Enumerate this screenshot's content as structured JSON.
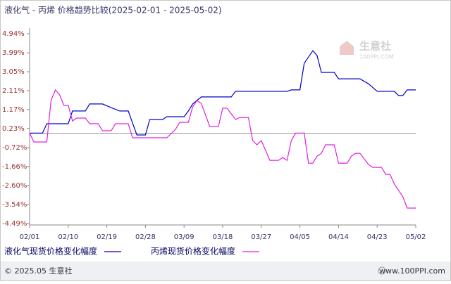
{
  "chart_data": {
    "type": "line",
    "title": "液化气 - 丙烯 价格趋势比较(2025-02-01 - 2025-05-02)",
    "xlim": [
      "02/01",
      "05/02"
    ],
    "xticks": [
      "02/01",
      "02/10",
      "02/19",
      "02/28",
      "03/09",
      "03/18",
      "03/27",
      "04/05",
      "04/14",
      "04/23",
      "05/02"
    ],
    "ylim": [
      -4.49,
      4.94
    ],
    "yticks": [
      {
        "value": 4.94,
        "label": "4.94%"
      },
      {
        "value": 3.99,
        "label": "3.99%"
      },
      {
        "value": 3.05,
        "label": "3.05%"
      },
      {
        "value": 2.11,
        "label": "2.11%"
      },
      {
        "value": 1.17,
        "label": "1.17%"
      },
      {
        "value": 0.23,
        "label": "0.23%"
      },
      {
        "value": -0.72,
        "label": "-0.72%"
      },
      {
        "value": -1.66,
        "label": "-1.66%"
      },
      {
        "value": -2.6,
        "label": "-2.60%"
      },
      {
        "value": -3.54,
        "label": "-3.54%"
      },
      {
        "value": -4.49,
        "label": "-4.49%"
      }
    ],
    "series": [
      {
        "name": "液化气现货价格变化幅度",
        "color": "#0000cc",
        "x": [
          "02/01",
          "02/04",
          "02/05",
          "02/10",
          "02/11",
          "02/14",
          "02/15",
          "02/18",
          "02/20",
          "02/22",
          "02/24",
          "02/26",
          "02/28",
          "03/01",
          "03/04",
          "03/05",
          "03/09",
          "03/10",
          "03/11",
          "03/13",
          "03/20",
          "03/21",
          "04/02",
          "04/03",
          "04/05",
          "04/06",
          "04/08",
          "04/09",
          "04/10",
          "04/13",
          "04/14",
          "04/19",
          "04/21",
          "04/23",
          "04/27",
          "04/28",
          "04/29",
          "04/30",
          "05/02"
        ],
        "values": [
          0,
          0,
          0.47,
          0.47,
          1.1,
          1.1,
          1.45,
          1.45,
          1.27,
          1.1,
          1.1,
          -0.09,
          -0.09,
          0.68,
          0.68,
          0.82,
          0.82,
          1.1,
          1.45,
          1.8,
          1.8,
          2.08,
          2.08,
          2.15,
          2.15,
          3.47,
          4.1,
          3.85,
          3.02,
          3.02,
          2.7,
          2.7,
          2.45,
          2.08,
          2.08,
          1.87,
          1.87,
          2.15,
          2.15
        ]
      },
      {
        "name": "丙烯现货价格变化幅度",
        "color": "#e020e0",
        "x": [
          "02/01",
          "02/02",
          "02/05",
          "02/06",
          "02/07",
          "02/08",
          "02/09",
          "02/10",
          "02/11",
          "02/12",
          "02/14",
          "02/15",
          "02/17",
          "02/18",
          "02/20",
          "02/21",
          "02/24",
          "02/25",
          "03/05",
          "03/07",
          "03/08",
          "03/10",
          "03/11",
          "03/12",
          "03/13",
          "03/15",
          "03/17",
          "03/18",
          "03/19",
          "03/21",
          "03/22",
          "03/24",
          "03/25",
          "03/26",
          "03/27",
          "03/29",
          "03/31",
          "04/01",
          "04/02",
          "04/03",
          "04/04",
          "04/06",
          "04/07",
          "04/08",
          "04/09",
          "04/10",
          "04/11",
          "04/13",
          "04/14",
          "04/16",
          "04/17",
          "04/18",
          "04/19",
          "04/21",
          "04/22",
          "04/24",
          "04/25",
          "04/26",
          "04/27",
          "04/29",
          "04/30",
          "05/02"
        ],
        "values": [
          0,
          -0.44,
          -0.44,
          1.62,
          2.15,
          1.9,
          1.38,
          1.38,
          0.61,
          0.75,
          0.75,
          0.47,
          0.47,
          0.12,
          0.12,
          0.47,
          0.47,
          -0.23,
          -0.23,
          0.19,
          0.54,
          0.54,
          1.31,
          1.62,
          1.48,
          0.33,
          0.33,
          1.24,
          1.24,
          0.68,
          0.78,
          0.78,
          -0.37,
          -0.58,
          -0.37,
          -1.35,
          -1.35,
          -1.21,
          -1.35,
          -0.37,
          0,
          0,
          -1.49,
          -1.49,
          -1.14,
          -1.0,
          -0.58,
          -0.58,
          -1.49,
          -1.49,
          -1.14,
          -1.0,
          -1.0,
          -1.56,
          -1.7,
          -1.7,
          -2.05,
          -2.05,
          -2.53,
          -3.16,
          -3.72,
          -3.72
        ]
      }
    ]
  },
  "watermark": {
    "name": "生意社",
    "site": "100PPI.COM"
  },
  "footer": {
    "copyright": "© 2025.05 生意社",
    "site": "www.100PPI.com"
  }
}
